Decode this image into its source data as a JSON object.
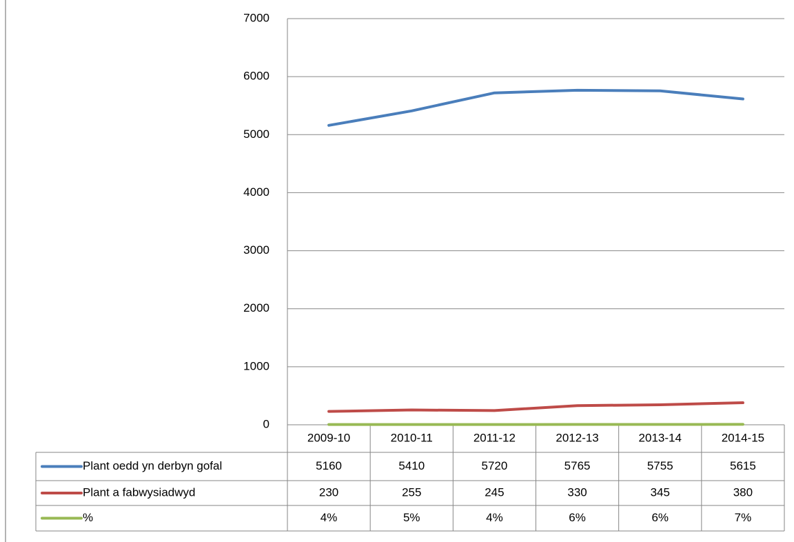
{
  "chart_data": {
    "type": "line",
    "categories": [
      "2009-10",
      "2010-11",
      "2011-12",
      "2012-13",
      "2013-14",
      "2014-15"
    ],
    "series": [
      {
        "name": "Plant oedd yn derbyn gofal",
        "color": "#4a7ebb",
        "values": [
          5160,
          5410,
          5720,
          5765,
          5755,
          5615
        ]
      },
      {
        "name": "Plant a fabwysiadwyd",
        "color": "#be4b48",
        "values": [
          230,
          255,
          245,
          330,
          345,
          380
        ]
      },
      {
        "name": "%",
        "color": "#98b954",
        "values": [
          4,
          5,
          4,
          6,
          6,
          7
        ],
        "value_labels": [
          "4%",
          "5%",
          "4%",
          "6%",
          "6%",
          "7%"
        ]
      }
    ],
    "ylim": [
      0,
      7000
    ],
    "yticks": [
      0,
      1000,
      2000,
      3000,
      4000,
      5000,
      6000,
      7000
    ],
    "grid": true
  }
}
